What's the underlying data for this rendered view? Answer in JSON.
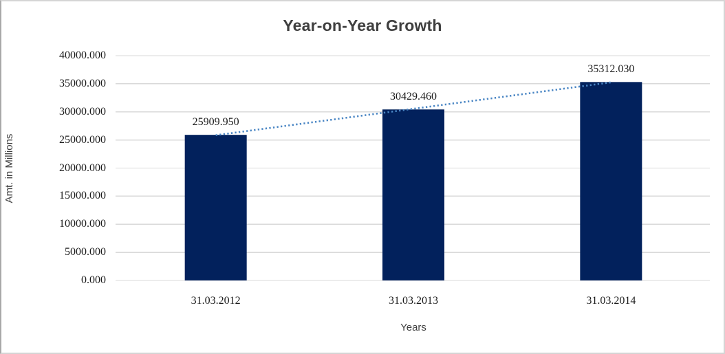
{
  "chart_data": {
    "type": "bar",
    "title": "Year-on-Year Growth",
    "xlabel": "Years",
    "ylabel": "Amt. in Millions",
    "categories": [
      "31.03.2012",
      "31.03.2013",
      "31.03.2014"
    ],
    "values": [
      25909.95,
      30429.46,
      35312.03
    ],
    "value_labels": [
      "25909.950",
      "30429.460",
      "35312.030"
    ],
    "ylim": [
      0,
      40000
    ],
    "ytick_step": 5000,
    "ytick_labels": [
      "0.000",
      "5000.000",
      "10000.000",
      "15000.000",
      "20000.000",
      "25000.000",
      "30000.000",
      "35000.000",
      "40000.000"
    ],
    "grid": true,
    "legend": "none",
    "trendline": {
      "type": "linear",
      "style": "dotted"
    },
    "colors": {
      "bar": "#02215c",
      "trendline": "#4a86c4",
      "gridline": "#d9d9d9",
      "title_text": "#3f3f3f",
      "axis_title_text": "#404040",
      "number_text": "#1a1a1a",
      "frame_border": "#d5d5d5"
    }
  }
}
